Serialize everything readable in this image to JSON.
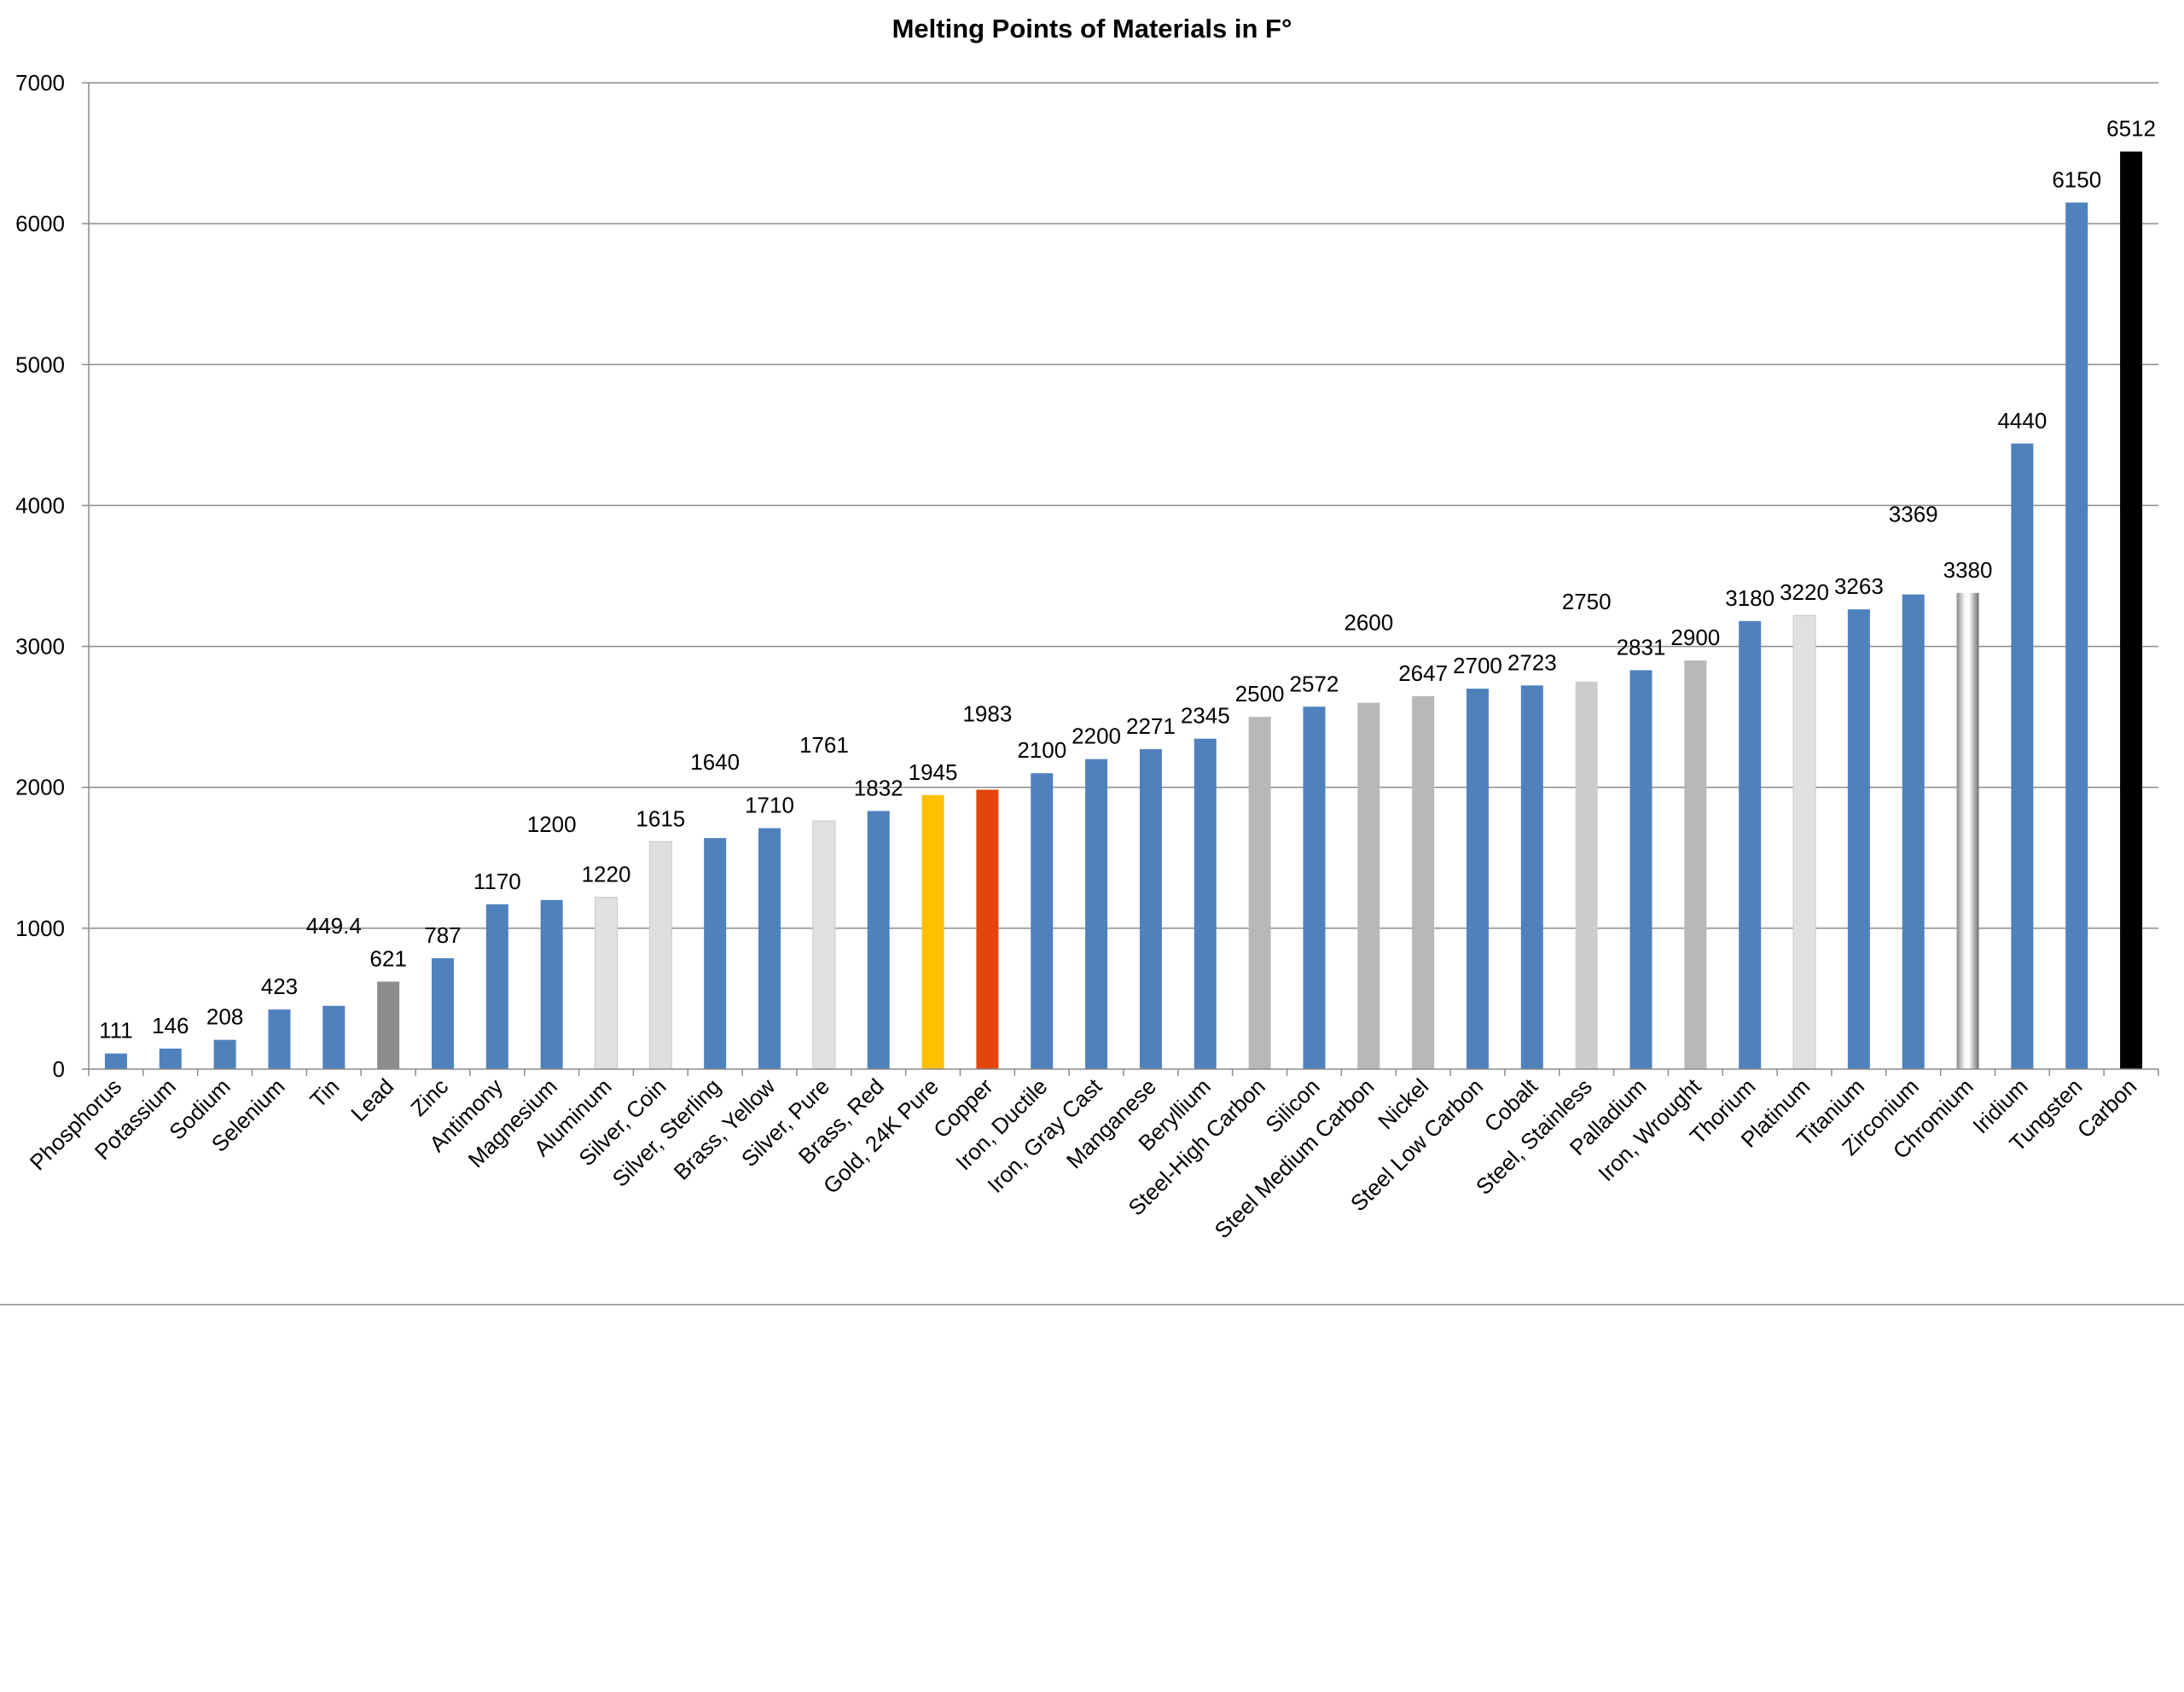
{
  "chart_data": {
    "type": "bar",
    "title": "Melting Points of Materials in F°",
    "xlabel": "",
    "ylabel": "",
    "ylim": [
      0,
      7000
    ],
    "yticks": [
      0,
      1000,
      2000,
      3000,
      4000,
      5000,
      6000,
      7000
    ],
    "grid": true,
    "legend": "none",
    "categories": [
      "Phosphorus",
      "Potassium",
      "Sodium",
      "Selenium",
      "Tin",
      "Lead",
      "Zinc",
      "Antimony",
      "Magnesium",
      "Aluminum",
      "Silver, Coin",
      "Silver, Sterling",
      "Brass, Yellow",
      "Silver, Pure",
      "Brass, Red",
      "Gold, 24K Pure",
      "Copper",
      "Iron, Ductile",
      "Iron, Gray Cast",
      "Manganese",
      "Beryllium",
      "Steel-High Carbon",
      "Silicon",
      "Steel Medium Carbon",
      "Nickel",
      "Steel Low Carbon",
      "Cobalt",
      "Steel, Stainless",
      "Palladium",
      "Iron, Wrought",
      "Thorium",
      "Platinum",
      "Titanium",
      "Zirconium",
      "Chromium",
      "Iridium",
      "Tungsten",
      "Carbon"
    ],
    "values": [
      111,
      146,
      208,
      423,
      449.4,
      621,
      787,
      1170,
      1200,
      1220,
      1615,
      1640,
      1710,
      1761,
      1832,
      1945,
      1983,
      2100,
      2200,
      2271,
      2345,
      2500,
      2572,
      2600,
      2647,
      2700,
      2723,
      2750,
      2831,
      2900,
      3180,
      3220,
      3263,
      3369,
      3380,
      4440,
      6150,
      6512
    ],
    "value_labels": [
      "111",
      "146",
      "208",
      "423",
      "449.4",
      "621",
      "787",
      "1170",
      "1200",
      "1220",
      "1615",
      "1640",
      "1710",
      "1761",
      "1832",
      "1945",
      "1983",
      "2100",
      "2200",
      "2271",
      "2345",
      "2500",
      "2572",
      "2600",
      "2647",
      "2700",
      "2723",
      "2750",
      "2831",
      "2900",
      "3180",
      "3220",
      "3263",
      "3369",
      "3380",
      "4440",
      "6150",
      "6512"
    ],
    "colors": [
      "#4f81bd",
      "#4f81bd",
      "#4f81bd",
      "#4f81bd",
      "#4f81bd",
      "#8c8c8c",
      "#4f81bd",
      "#4f81bd",
      "#4f81bd",
      "#e0e0e0",
      "#dedede",
      "#4f81bd",
      "#4f81bd",
      "#e0e0e0",
      "#4f81bd",
      "#ffc000",
      "#e2460c",
      "#4f81bd",
      "#4f81bd",
      "#4f81bd",
      "#4f81bd",
      "#b8b8b8",
      "#4f81bd",
      "#b8b8b8",
      "#b8b8b8",
      "#4f81bd",
      "#4f81bd",
      "#cccccc",
      "#4f81bd",
      "#b8b8b8",
      "#4f81bd",
      "#e0e0e0",
      "#4f81bd",
      "#4f81bd",
      "chrome",
      "#4f81bd",
      "#4f81bd",
      "#000000"
    ]
  }
}
